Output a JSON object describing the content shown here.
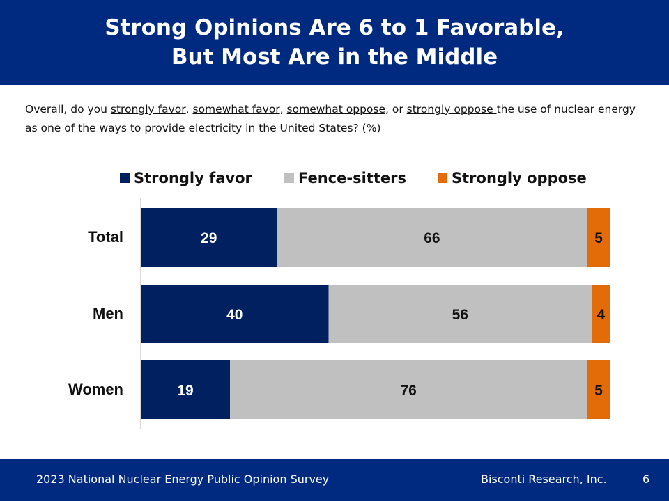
{
  "header": {
    "title_line1": "Strong Opinions Are 6 to 1 Favorable,",
    "title_line2": "But Most Are in the Middle"
  },
  "question": {
    "part1": "Overall, do you ",
    "opt1": "strongly favor",
    "sep1": ", ",
    "opt2": "somewhat favor",
    "sep2": ", ",
    "opt3": "somewhat oppose",
    "sep3": ", or ",
    "opt4": "strongly oppose ",
    "part2": "the use of nuclear energy as one of the ways to provide electricity in the United States? (%)"
  },
  "colors": {
    "header_bg": "#002a80",
    "strongly_favor": "#002060",
    "fence_sitters": "#c0c0c0",
    "strongly_oppose": "#e36c09"
  },
  "chart_data": {
    "type": "bar",
    "orientation": "horizontal",
    "stacked": true,
    "categories": [
      "Total",
      "Men",
      "Women"
    ],
    "series": [
      {
        "name": "Strongly favor",
        "values": [
          29,
          40,
          19
        ],
        "color": "#002060"
      },
      {
        "name": "Fence-sitters",
        "values": [
          66,
          56,
          76
        ],
        "color": "#c0c0c0"
      },
      {
        "name": "Strongly oppose",
        "values": [
          5,
          4,
          5
        ],
        "color": "#e36c09"
      }
    ],
    "xlim": [
      0,
      100
    ],
    "legend_position": "top",
    "grid": false
  },
  "footer": {
    "survey": "2023 National Nuclear Energy Public Opinion Survey",
    "company": "Bisconti Research, Inc.",
    "page": "6"
  }
}
